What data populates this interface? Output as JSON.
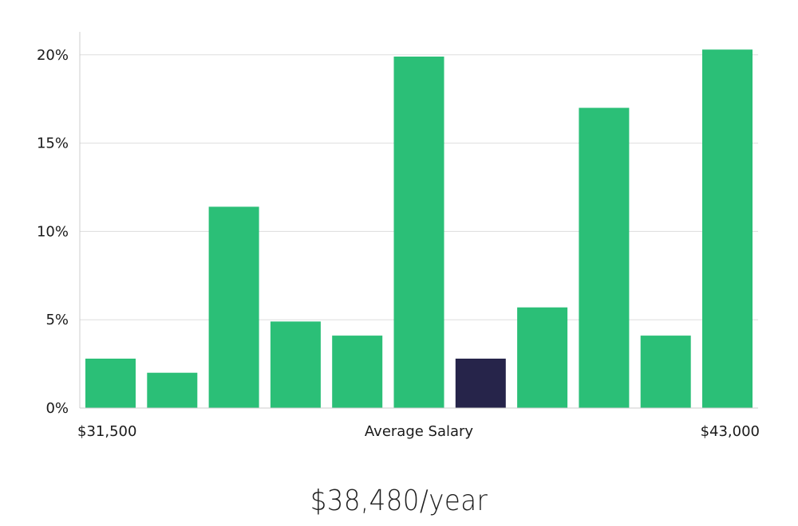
{
  "chart_data": {
    "type": "bar",
    "title": "",
    "xlabel": "Average Salary",
    "ylabel": "",
    "x_range_labels": {
      "min": "$31,500",
      "max": "$43,000"
    },
    "yticks": [
      "0%",
      "5%",
      "10%",
      "15%",
      "20%"
    ],
    "ylim": [
      0,
      21.3
    ],
    "grid": true,
    "values": [
      2.8,
      2.0,
      11.4,
      4.9,
      4.1,
      19.9,
      2.8,
      5.7,
      17.0,
      4.1,
      20.3
    ],
    "highlight_index": 6,
    "colors": {
      "bar": "#2bbf77",
      "highlight": "#26244a",
      "grid": "#dddddd",
      "axis": "#cccccc"
    }
  },
  "salary": {
    "value_label": "$38,480/year"
  }
}
